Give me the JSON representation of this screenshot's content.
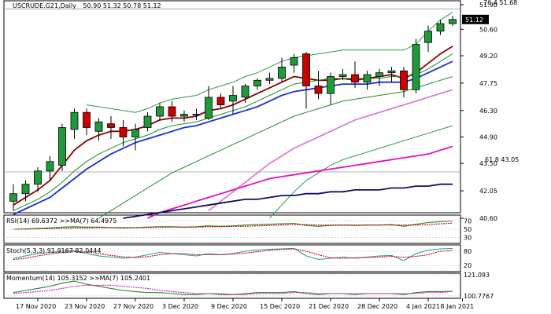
{
  "header": {
    "symbol": "USCRUDE.G21,Daily",
    "ohlc": "50.90 51.32 50.78 51.12"
  },
  "price_tag": "51.12",
  "fib": [
    {
      "label": "76.4 51.68",
      "value": 51.68
    },
    {
      "label": "61.8 43.05",
      "value": 43.05
    }
  ],
  "colors": {
    "bull": "#1f9a3a",
    "bear": "#cc0000",
    "ma_red": "#8b0000",
    "ma_blue": "#1a2fd6",
    "ma_green": "#1e8c2a",
    "ma_pink": "#e07ad8",
    "ma_magenta": "#e010c0",
    "ma_navy": "#101060",
    "bollinger": "#2e9a4e"
  },
  "chart_data": [
    {
      "type": "candlestick",
      "title": "USCRUDE.G21,Daily",
      "ylim": [
        40.6,
        51.9
      ],
      "y_ticks": [
        "51.90",
        "50.60",
        "49.20",
        "47.75",
        "46.30",
        "44.90",
        "43.50",
        "42.05",
        "40.60"
      ],
      "x_ticks": [
        "17 Nov 2020",
        "23 Nov 2020",
        "27 Nov 2020",
        "3 Dec 2020",
        "9 Dec 2020",
        "15 Dec 2020",
        "21 Dec 2020",
        "28 Dec 2020",
        "4 Jan 2021",
        "8 Jan 2021"
      ],
      "candles": [
        {
          "o": 41.5,
          "h": 42.4,
          "l": 41.0,
          "c": 41.9
        },
        {
          "o": 41.9,
          "h": 42.6,
          "l": 41.5,
          "c": 42.4
        },
        {
          "o": 42.4,
          "h": 43.3,
          "l": 42.0,
          "c": 43.1
        },
        {
          "o": 43.1,
          "h": 43.9,
          "l": 42.6,
          "c": 43.6
        },
        {
          "o": 43.4,
          "h": 45.6,
          "l": 43.1,
          "c": 45.4
        },
        {
          "o": 45.3,
          "h": 46.4,
          "l": 44.8,
          "c": 46.2
        },
        {
          "o": 46.2,
          "h": 46.4,
          "l": 45.0,
          "c": 45.4
        },
        {
          "o": 45.2,
          "h": 45.9,
          "l": 44.7,
          "c": 45.7
        },
        {
          "o": 45.6,
          "h": 46.0,
          "l": 44.8,
          "c": 45.4
        },
        {
          "o": 45.4,
          "h": 45.8,
          "l": 44.4,
          "c": 44.9
        },
        {
          "o": 44.9,
          "h": 45.6,
          "l": 44.2,
          "c": 45.3
        },
        {
          "o": 45.4,
          "h": 46.2,
          "l": 45.2,
          "c": 46.0
        },
        {
          "o": 46.0,
          "h": 46.7,
          "l": 45.8,
          "c": 46.5
        },
        {
          "o": 46.5,
          "h": 46.8,
          "l": 45.7,
          "c": 46.0
        },
        {
          "o": 46.0,
          "h": 46.3,
          "l": 45.7,
          "c": 46.1
        },
        {
          "o": 46.1,
          "h": 46.4,
          "l": 45.8,
          "c": 46.1
        },
        {
          "o": 45.9,
          "h": 47.6,
          "l": 45.8,
          "c": 47.0
        },
        {
          "o": 47.0,
          "h": 47.2,
          "l": 46.4,
          "c": 46.6
        },
        {
          "o": 46.8,
          "h": 47.6,
          "l": 46.1,
          "c": 47.1
        },
        {
          "o": 47.0,
          "h": 47.7,
          "l": 46.7,
          "c": 47.6
        },
        {
          "o": 47.6,
          "h": 48.0,
          "l": 47.4,
          "c": 47.9
        },
        {
          "o": 47.9,
          "h": 48.3,
          "l": 47.7,
          "c": 48.0
        },
        {
          "o": 48.0,
          "h": 49.1,
          "l": 47.8,
          "c": 48.6
        },
        {
          "o": 48.7,
          "h": 49.3,
          "l": 48.3,
          "c": 49.1
        },
        {
          "o": 49.3,
          "h": 49.4,
          "l": 46.4,
          "c": 47.6
        },
        {
          "o": 47.6,
          "h": 48.4,
          "l": 46.9,
          "c": 47.2
        },
        {
          "o": 47.2,
          "h": 48.3,
          "l": 46.6,
          "c": 48.1
        },
        {
          "o": 48.1,
          "h": 48.5,
          "l": 47.9,
          "c": 48.2
        },
        {
          "o": 48.2,
          "h": 48.9,
          "l": 47.5,
          "c": 47.8
        },
        {
          "o": 47.8,
          "h": 48.4,
          "l": 47.4,
          "c": 48.2
        },
        {
          "o": 48.1,
          "h": 48.5,
          "l": 47.6,
          "c": 48.3
        },
        {
          "o": 48.3,
          "h": 48.6,
          "l": 47.8,
          "c": 48.4
        },
        {
          "o": 48.4,
          "h": 48.6,
          "l": 47.0,
          "c": 47.4
        },
        {
          "o": 47.4,
          "h": 50.1,
          "l": 47.2,
          "c": 49.8
        },
        {
          "o": 49.9,
          "h": 50.8,
          "l": 49.4,
          "c": 50.5
        },
        {
          "o": 50.5,
          "h": 51.1,
          "l": 50.3,
          "c": 50.9
        },
        {
          "o": 50.9,
          "h": 51.32,
          "l": 50.78,
          "c": 51.12
        }
      ],
      "overlays": [
        {
          "color": "ma_red",
          "values": [
            41.3,
            41.7,
            42.1,
            42.6,
            43.4,
            44.2,
            44.7,
            45.0,
            45.2,
            45.2,
            45.3,
            45.5,
            45.8,
            45.9,
            45.9,
            46.0,
            46.3,
            46.4,
            46.6,
            46.9,
            47.2,
            47.5,
            47.8,
            48.1,
            48.0,
            47.9,
            47.9,
            48.0,
            47.9,
            48.0,
            48.1,
            48.2,
            48.0,
            48.3,
            48.8,
            49.3,
            49.7
          ]
        },
        {
          "color": "ma_green",
          "values": [
            41.0,
            41.3,
            41.6,
            42.0,
            42.5,
            43.1,
            43.6,
            44.0,
            44.3,
            44.6,
            44.8,
            45.0,
            45.3,
            45.5,
            45.6,
            45.7,
            45.9,
            46.1,
            46.3,
            46.5,
            46.8,
            47.1,
            47.4,
            47.7,
            47.8,
            47.9,
            48.0,
            48.0,
            48.0,
            48.0,
            48.0,
            48.1,
            48.1,
            48.2,
            48.5,
            48.9,
            49.3
          ]
        },
        {
          "color": "ma_blue",
          "values": [
            40.8,
            41.1,
            41.4,
            41.7,
            42.2,
            42.7,
            43.2,
            43.6,
            44.0,
            44.3,
            44.6,
            44.8,
            45.0,
            45.2,
            45.4,
            45.5,
            45.7,
            45.9,
            46.1,
            46.3,
            46.5,
            46.8,
            47.1,
            47.3,
            47.4,
            47.5,
            47.6,
            47.7,
            47.7,
            47.7,
            47.8,
            47.8,
            47.8,
            48.0,
            48.3,
            48.6,
            48.9
          ]
        },
        {
          "color": "ma_green",
          "values": [
            null,
            null,
            null,
            null,
            null,
            null,
            null,
            40.6,
            41.0,
            41.4,
            41.8,
            42.2,
            42.6,
            43.0,
            43.3,
            43.6,
            43.9,
            44.2,
            44.5,
            44.8,
            45.1,
            45.4,
            45.7,
            46.0,
            46.2,
            46.4,
            46.6,
            46.8,
            46.9,
            47.0,
            47.1,
            47.2,
            47.3,
            47.5,
            47.7,
            47.9,
            48.1
          ]
        },
        {
          "color": "ma_pink",
          "values": [
            null,
            null,
            null,
            null,
            null,
            null,
            null,
            null,
            null,
            null,
            null,
            null,
            null,
            null,
            null,
            null,
            41.0,
            41.5,
            42.0,
            42.5,
            43.0,
            43.5,
            43.9,
            44.3,
            44.6,
            44.9,
            45.2,
            45.5,
            45.8,
            46.0,
            46.2,
            46.4,
            46.6,
            46.8,
            47.0,
            47.2,
            47.4
          ]
        },
        {
          "color": "bollinger",
          "values": [
            null,
            null,
            null,
            null,
            null,
            null,
            46.6,
            46.5,
            46.4,
            46.3,
            46.2,
            46.4,
            46.7,
            46.9,
            47.0,
            47.1,
            47.4,
            47.6,
            47.8,
            48.1,
            48.3,
            48.6,
            48.9,
            49.1,
            49.2,
            49.3,
            49.4,
            49.5,
            49.5,
            49.5,
            49.5,
            49.5,
            49.5,
            49.8,
            50.5,
            51.1,
            51.5
          ]
        },
        {
          "color": "bollinger",
          "values": [
            null,
            null,
            null,
            null,
            null,
            null,
            null,
            null,
            null,
            null,
            null,
            null,
            null,
            null,
            null,
            null,
            null,
            null,
            null,
            null,
            null,
            40.6,
            41.3,
            42.0,
            42.6,
            43.0,
            43.4,
            43.7,
            43.9,
            44.1,
            44.3,
            44.5,
            44.7,
            44.9,
            45.1,
            45.3,
            45.5
          ]
        },
        {
          "color": "ma_magenta",
          "values": [
            null,
            null,
            null,
            null,
            null,
            null,
            null,
            null,
            null,
            null,
            null,
            40.6,
            40.9,
            41.1,
            41.3,
            41.5,
            41.7,
            41.9,
            42.1,
            42.3,
            42.5,
            42.7,
            42.8,
            42.9,
            43.0,
            43.1,
            43.2,
            43.3,
            43.4,
            43.5,
            43.6,
            43.7,
            43.8,
            43.9,
            44.0,
            44.2,
            44.4
          ]
        },
        {
          "color": "ma_navy",
          "values": [
            null,
            null,
            null,
            null,
            null,
            null,
            null,
            null,
            null,
            40.6,
            40.7,
            40.8,
            40.9,
            41.0,
            41.1,
            41.2,
            41.3,
            41.4,
            41.5,
            41.6,
            41.6,
            41.7,
            41.8,
            41.8,
            41.9,
            41.9,
            42.0,
            42.0,
            42.1,
            42.1,
            42.1,
            42.2,
            42.2,
            42.3,
            42.3,
            42.4,
            42.4
          ]
        }
      ]
    },
    {
      "type": "line",
      "title": "RSI(14) 69.6372 >>MA(7) 64.4975",
      "y_ticks": [
        "70",
        "50",
        "30"
      ],
      "series": [
        {
          "values": [
            50,
            51,
            52,
            53,
            55,
            56,
            55,
            55,
            54,
            53,
            54,
            55,
            56,
            56,
            55,
            56,
            58,
            57,
            58,
            60,
            61,
            62,
            63,
            64,
            59,
            57,
            59,
            60,
            59,
            60,
            60,
            61,
            57,
            62,
            66,
            68,
            69.6
          ]
        },
        {
          "values": [
            50,
            50,
            51,
            51,
            52,
            53,
            53,
            54,
            54,
            54,
            54,
            54,
            55,
            55,
            55,
            55,
            56,
            56,
            57,
            57,
            58,
            59,
            60,
            61,
            61,
            60,
            60,
            60,
            60,
            60,
            60,
            60,
            60,
            60,
            61,
            63,
            64.5
          ]
        }
      ]
    },
    {
      "type": "line",
      "title": "Stoch(5,3,3) 91.9167 82.0444",
      "y_ticks": [
        "80",
        "20"
      ],
      "series": [
        {
          "values": [
            50,
            60,
            70,
            75,
            80,
            82,
            70,
            60,
            55,
            50,
            55,
            65,
            75,
            70,
            65,
            60,
            70,
            65,
            70,
            80,
            85,
            88,
            90,
            92,
            60,
            45,
            50,
            55,
            50,
            55,
            60,
            62,
            40,
            70,
            85,
            90,
            91.9
          ]
        },
        {
          "values": [
            45,
            50,
            60,
            68,
            74,
            78,
            77,
            70,
            62,
            56,
            53,
            57,
            65,
            70,
            70,
            65,
            65,
            65,
            68,
            72,
            78,
            84,
            88,
            90,
            80,
            65,
            52,
            50,
            52,
            53,
            55,
            58,
            54,
            58,
            65,
            80,
            82.0
          ]
        }
      ]
    },
    {
      "type": "line",
      "title": "Momentum(14) 105.3152 >>MA(7) 105.2401",
      "y_ticks": [
        "121.093",
        "100.7767"
      ],
      "series": [
        {
          "values": [
            104,
            106,
            108,
            110,
            113,
            115,
            112,
            110,
            108,
            106,
            105,
            104,
            104,
            103,
            102,
            102,
            103,
            102,
            102,
            103,
            104,
            104,
            104,
            105,
            103,
            102,
            103,
            103,
            102,
            103,
            103,
            103,
            102,
            104,
            105,
            105,
            105.3
          ]
        },
        {
          "values": [
            103,
            104,
            105,
            106,
            108,
            110,
            111,
            111,
            111,
            110,
            109,
            108,
            106,
            105,
            104,
            103,
            103,
            103,
            102,
            102,
            103,
            103,
            103,
            104,
            104,
            103,
            103,
            103,
            103,
            103,
            103,
            103,
            103,
            103,
            104,
            104,
            105.2
          ]
        }
      ]
    }
  ]
}
